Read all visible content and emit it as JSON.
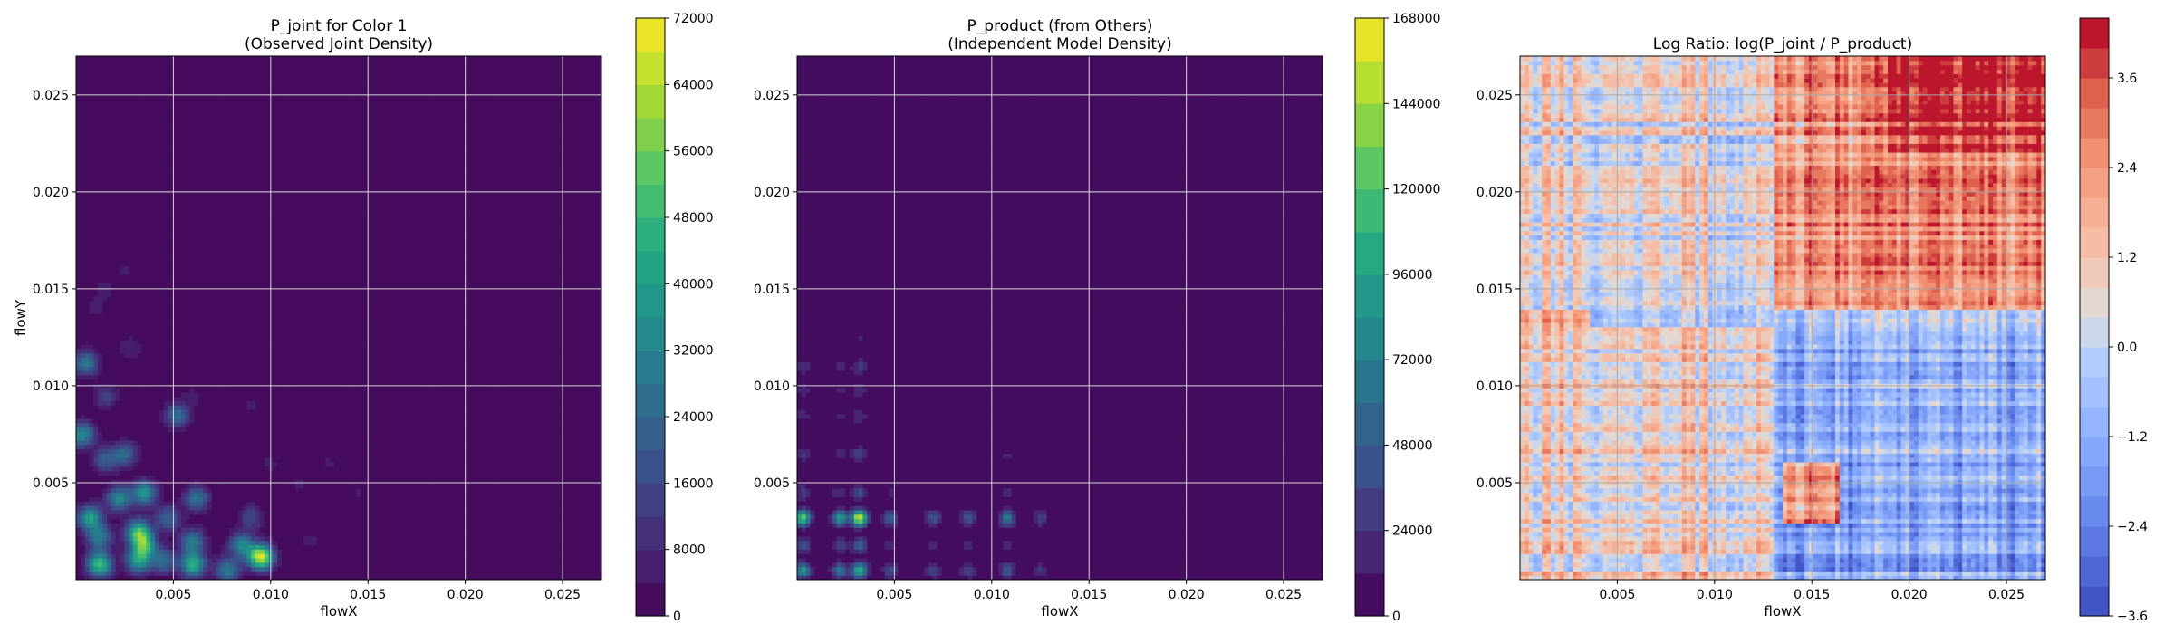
{
  "chart_data": [
    {
      "type": "heatmap",
      "title": "P_joint for Color 1",
      "subtitle": "(Observed Joint Density)",
      "xlabel": "flowX",
      "ylabel": "flowY",
      "xlim": [
        0,
        0.027
      ],
      "ylim": [
        0,
        0.027
      ],
      "xticks": [
        0.005,
        0.01,
        0.015,
        0.02,
        0.025
      ],
      "xtick_labels": [
        "0.005",
        "0.010",
        "0.015",
        "0.020",
        "0.025"
      ],
      "yticks": [
        0.005,
        0.01,
        0.015,
        0.02,
        0.025
      ],
      "ytick_labels": [
        "0.005",
        "0.010",
        "0.015",
        "0.020",
        "0.025"
      ],
      "grid": true,
      "colormap": "viridis",
      "colorbar": {
        "min": 0,
        "max": 72000,
        "ticks": [
          0,
          8000,
          16000,
          24000,
          32000,
          40000,
          48000,
          56000,
          64000,
          72000
        ],
        "tick_labels": [
          "0",
          "8000",
          "16000",
          "24000",
          "32000",
          "40000",
          "48000",
          "56000",
          "64000",
          "72000"
        ]
      },
      "density_peaks": [
        {
          "x": 0.0005,
          "y": 0.0112,
          "value": 30000
        },
        {
          "x": 0.0003,
          "y": 0.0075,
          "value": 36000
        },
        {
          "x": 0.0015,
          "y": 0.0062,
          "value": 22000
        },
        {
          "x": 0.0025,
          "y": 0.0065,
          "value": 24000
        },
        {
          "x": 0.0052,
          "y": 0.0085,
          "value": 26000
        },
        {
          "x": 0.0007,
          "y": 0.0032,
          "value": 40000
        },
        {
          "x": 0.0012,
          "y": 0.0022,
          "value": 30000
        },
        {
          "x": 0.0022,
          "y": 0.0042,
          "value": 34000
        },
        {
          "x": 0.0035,
          "y": 0.0045,
          "value": 38000
        },
        {
          "x": 0.0032,
          "y": 0.0025,
          "value": 46000
        },
        {
          "x": 0.0035,
          "y": 0.0018,
          "value": 42000
        },
        {
          "x": 0.0012,
          "y": 0.0008,
          "value": 50000
        },
        {
          "x": 0.0032,
          "y": 0.001,
          "value": 38000
        },
        {
          "x": 0.006,
          "y": 0.0008,
          "value": 46000
        },
        {
          "x": 0.0062,
          "y": 0.0042,
          "value": 28000
        },
        {
          "x": 0.0078,
          "y": 0.0005,
          "value": 30000
        },
        {
          "x": 0.0085,
          "y": 0.0018,
          "value": 32000
        },
        {
          "x": 0.0095,
          "y": 0.0012,
          "value": 68000
        },
        {
          "x": 0.006,
          "y": 0.002,
          "value": 30000
        },
        {
          "x": 0.0047,
          "y": 0.0032,
          "value": 24000
        },
        {
          "x": 0.009,
          "y": 0.0032,
          "value": 16000
        },
        {
          "x": 0.0015,
          "y": 0.0095,
          "value": 14000
        },
        {
          "x": 0.0028,
          "y": 0.012,
          "value": 8000
        },
        {
          "x": 0.0015,
          "y": 0.015,
          "value": 5000
        },
        {
          "x": 0.001,
          "y": 0.014,
          "value": 5000
        },
        {
          "x": 0.0025,
          "y": 0.016,
          "value": 4500
        },
        {
          "x": 0.006,
          "y": 0.0095,
          "value": 5000
        },
        {
          "x": 0.009,
          "y": 0.009,
          "value": 5000
        },
        {
          "x": 0.0115,
          "y": 0.005,
          "value": 4500
        },
        {
          "x": 0.013,
          "y": 0.006,
          "value": 4500
        },
        {
          "x": 0.012,
          "y": 0.002,
          "value": 5000
        },
        {
          "x": 0.0145,
          "y": 0.0045,
          "value": 4500
        },
        {
          "x": 0.01,
          "y": 0.006,
          "value": 5000
        },
        {
          "x": 0.0045,
          "y": 0.001,
          "value": 26000
        }
      ]
    },
    {
      "type": "heatmap",
      "title": "P_product (from Others)",
      "subtitle": "(Independent Model Density)",
      "xlabel": "flowX",
      "ylabel": "",
      "xlim": [
        0,
        0.027
      ],
      "ylim": [
        0,
        0.027
      ],
      "xticks": [
        0.005,
        0.01,
        0.015,
        0.02,
        0.025
      ],
      "xtick_labels": [
        "0.005",
        "0.010",
        "0.015",
        "0.020",
        "0.025"
      ],
      "yticks": [
        0.005,
        0.01,
        0.015,
        0.02,
        0.025
      ],
      "ytick_labels": [
        "0.005",
        "0.010",
        "0.015",
        "0.020",
        "0.025"
      ],
      "grid": true,
      "colormap": "viridis",
      "colorbar": {
        "min": 0,
        "max": 168000,
        "ticks": [
          0,
          24000,
          48000,
          72000,
          96000,
          120000,
          144000,
          168000
        ],
        "tick_labels": [
          "0",
          "24000",
          "48000",
          "72000",
          "96000",
          "120000",
          "144000",
          "168000"
        ]
      },
      "marginal_x_peaks": [
        {
          "x": 0.0003,
          "weight": 0.8
        },
        {
          "x": 0.0022,
          "weight": 0.6
        },
        {
          "x": 0.0032,
          "weight": 1.0
        },
        {
          "x": 0.0048,
          "weight": 0.35
        },
        {
          "x": 0.007,
          "weight": 0.3
        },
        {
          "x": 0.0088,
          "weight": 0.3
        },
        {
          "x": 0.0108,
          "weight": 0.45
        },
        {
          "x": 0.0125,
          "weight": 0.22
        }
      ],
      "marginal_y_peaks": [
        {
          "y": 0.0032,
          "weight": 1.0
        },
        {
          "y": 0.0005,
          "weight": 0.7
        },
        {
          "y": 0.0018,
          "weight": 0.35
        },
        {
          "y": 0.0045,
          "weight": 0.25
        },
        {
          "y": 0.0065,
          "weight": 0.2
        },
        {
          "y": 0.0085,
          "weight": 0.15
        },
        {
          "y": 0.0098,
          "weight": 0.15
        },
        {
          "y": 0.011,
          "weight": 0.18
        },
        {
          "y": 0.0125,
          "weight": 0.08
        }
      ]
    },
    {
      "type": "heatmap",
      "title": "Log Ratio: log(P_joint / P_product)",
      "xlabel": "flowX",
      "ylabel": "",
      "xlim": [
        0,
        0.027
      ],
      "ylim": [
        0,
        0.027
      ],
      "xticks": [
        0.005,
        0.01,
        0.015,
        0.02,
        0.025
      ],
      "xtick_labels": [
        "0.005",
        "0.010",
        "0.015",
        "0.020",
        "0.025"
      ],
      "yticks": [
        0.005,
        0.01,
        0.015,
        0.02,
        0.025
      ],
      "ytick_labels": [
        "0.005",
        "0.010",
        "0.015",
        "0.020",
        "0.025"
      ],
      "grid": true,
      "colormap": "coolwarm",
      "colorbar": {
        "min": -3.6,
        "max": 4.4,
        "ticks": [
          -3.6,
          -2.4,
          -1.2,
          0,
          1.2,
          2.4,
          3.6
        ],
        "tick_labels": [
          "−3.6",
          "−2.4",
          "−1.2",
          "0.0",
          "1.2",
          "2.4",
          "3.6"
        ]
      },
      "regions": [
        {
          "x_range": [
            0.013,
            0.027
          ],
          "y_range": [
            0.014,
            0.027
          ],
          "value": 2.4
        },
        {
          "x_range": [
            0.019,
            0.027
          ],
          "y_range": [
            0.022,
            0.027
          ],
          "value": 3.8
        },
        {
          "x_range": [
            0.0,
            0.0035
          ],
          "y_range": [
            0.013,
            0.018
          ],
          "value": 2.2
        },
        {
          "x_range": [
            0.013,
            0.027
          ],
          "y_range": [
            0.0035,
            0.013
          ],
          "value": -1.2
        },
        {
          "x_range": [
            0.013,
            0.027
          ],
          "y_range": [
            0.0,
            0.0035
          ],
          "value": -1.6
        },
        {
          "x_range": [
            0.0,
            0.013
          ],
          "y_range": [
            0.0,
            0.013
          ],
          "value": 0.9
        },
        {
          "x_range": [
            0.0,
            0.013
          ],
          "y_range": [
            0.014,
            0.027
          ],
          "value": 0.5
        },
        {
          "x_range": [
            0.0135,
            0.0165
          ],
          "y_range": [
            0.003,
            0.006
          ],
          "value": 2.6
        }
      ]
    }
  ]
}
